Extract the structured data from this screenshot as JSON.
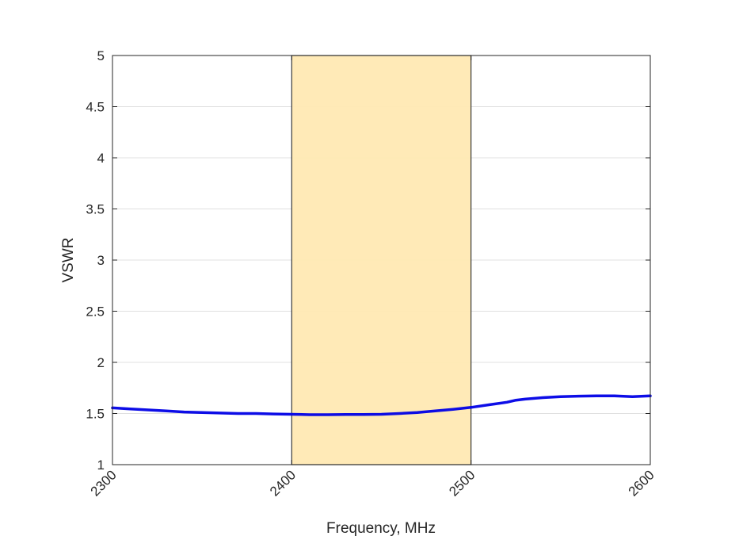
{
  "chart_data": {
    "type": "line",
    "title": "",
    "xlabel": "Frequency, MHz",
    "ylabel": "VSWR",
    "xlim": [
      2300,
      2600
    ],
    "ylim": [
      1,
      5
    ],
    "xticks": [
      "2300",
      "2400",
      "2500",
      "2600"
    ],
    "yticks": [
      "1",
      "1.5",
      "2",
      "2.5",
      "3",
      "3.5",
      "4",
      "4.5",
      "5"
    ],
    "grid": "y-major",
    "highlight_band": {
      "x_start": 2400,
      "x_end": 2500,
      "color": "#FFE9B3"
    },
    "series": [
      {
        "name": "VSWR",
        "color": "#0000E6",
        "x": [
          2300,
          2310,
          2320,
          2330,
          2340,
          2350,
          2360,
          2370,
          2380,
          2390,
          2400,
          2410,
          2420,
          2430,
          2440,
          2450,
          2460,
          2470,
          2480,
          2490,
          2500,
          2510,
          2520,
          2525,
          2530,
          2540,
          2550,
          2560,
          2570,
          2580,
          2590,
          2600
        ],
        "y": [
          1.555,
          1.545,
          1.535,
          1.525,
          1.515,
          1.51,
          1.505,
          1.5,
          1.5,
          1.495,
          1.492,
          1.488,
          1.488,
          1.49,
          1.49,
          1.492,
          1.5,
          1.51,
          1.525,
          1.54,
          1.56,
          1.585,
          1.61,
          1.63,
          1.64,
          1.655,
          1.665,
          1.67,
          1.672,
          1.672,
          1.665,
          1.672
        ]
      }
    ]
  }
}
